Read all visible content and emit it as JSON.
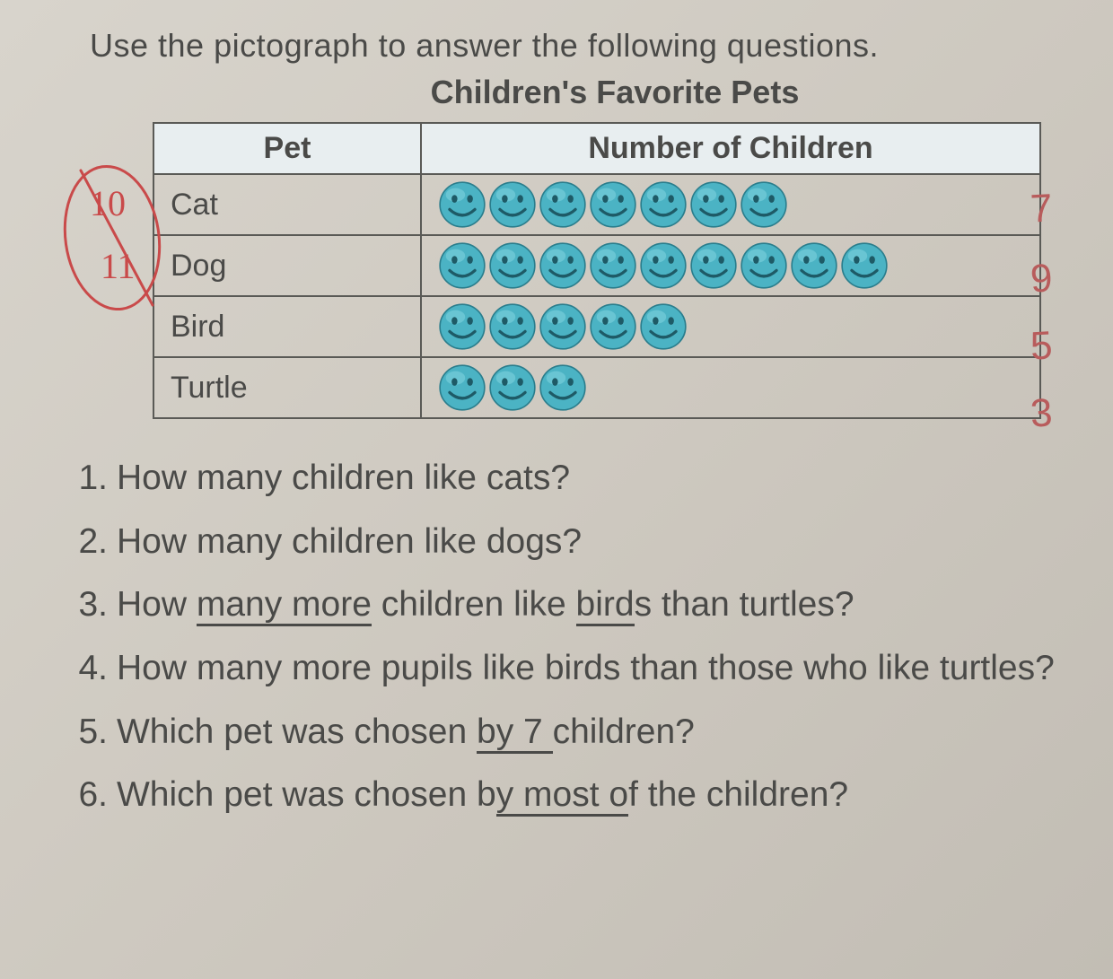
{
  "instruction": "Use the pictograph to answer the following questions.",
  "title": "Children's Favorite Pets",
  "table": {
    "headers": {
      "col1": "Pet",
      "col2": "Number of Children"
    },
    "rows": [
      {
        "pet": "Cat",
        "count": 7,
        "annotation": "7"
      },
      {
        "pet": "Dog",
        "count": 9,
        "annotation": "9"
      },
      {
        "pet": "Bird",
        "count": 5,
        "annotation": "5"
      },
      {
        "pet": "Turtle",
        "count": 3,
        "annotation": "3"
      }
    ],
    "smiley": {
      "fill": "#4bb3c4",
      "stroke": "#2a7d8c",
      "highlight": "#7dd0de",
      "eye": "#1e5a66",
      "size": 54
    },
    "header_bg": "#e8eef0",
    "border_color": "#5a5a56"
  },
  "questions": [
    {
      "n": "1.",
      "text": "How many children like cats?"
    },
    {
      "n": "2.",
      "text": "How many children like dogs?"
    },
    {
      "n": "3.",
      "text_pre": "How ",
      "u1": "many more",
      "mid": " children like ",
      "u2": "bird",
      "text_post": "s than  turtles?"
    },
    {
      "n": "4.",
      "text": "How many more pupils like birds than those who like turtles?"
    },
    {
      "n": "5.",
      "text_pre": "Which pet was chosen ",
      "u1": "by 7 ",
      "text_post": "children?"
    },
    {
      "n": "6.",
      "text_pre": "Which pet was chosen b",
      "u1": "y most o",
      "text_post": "f the children?"
    }
  ],
  "pen": {
    "color": "#c94a4a",
    "score_top": "10",
    "score_bot": "11"
  }
}
